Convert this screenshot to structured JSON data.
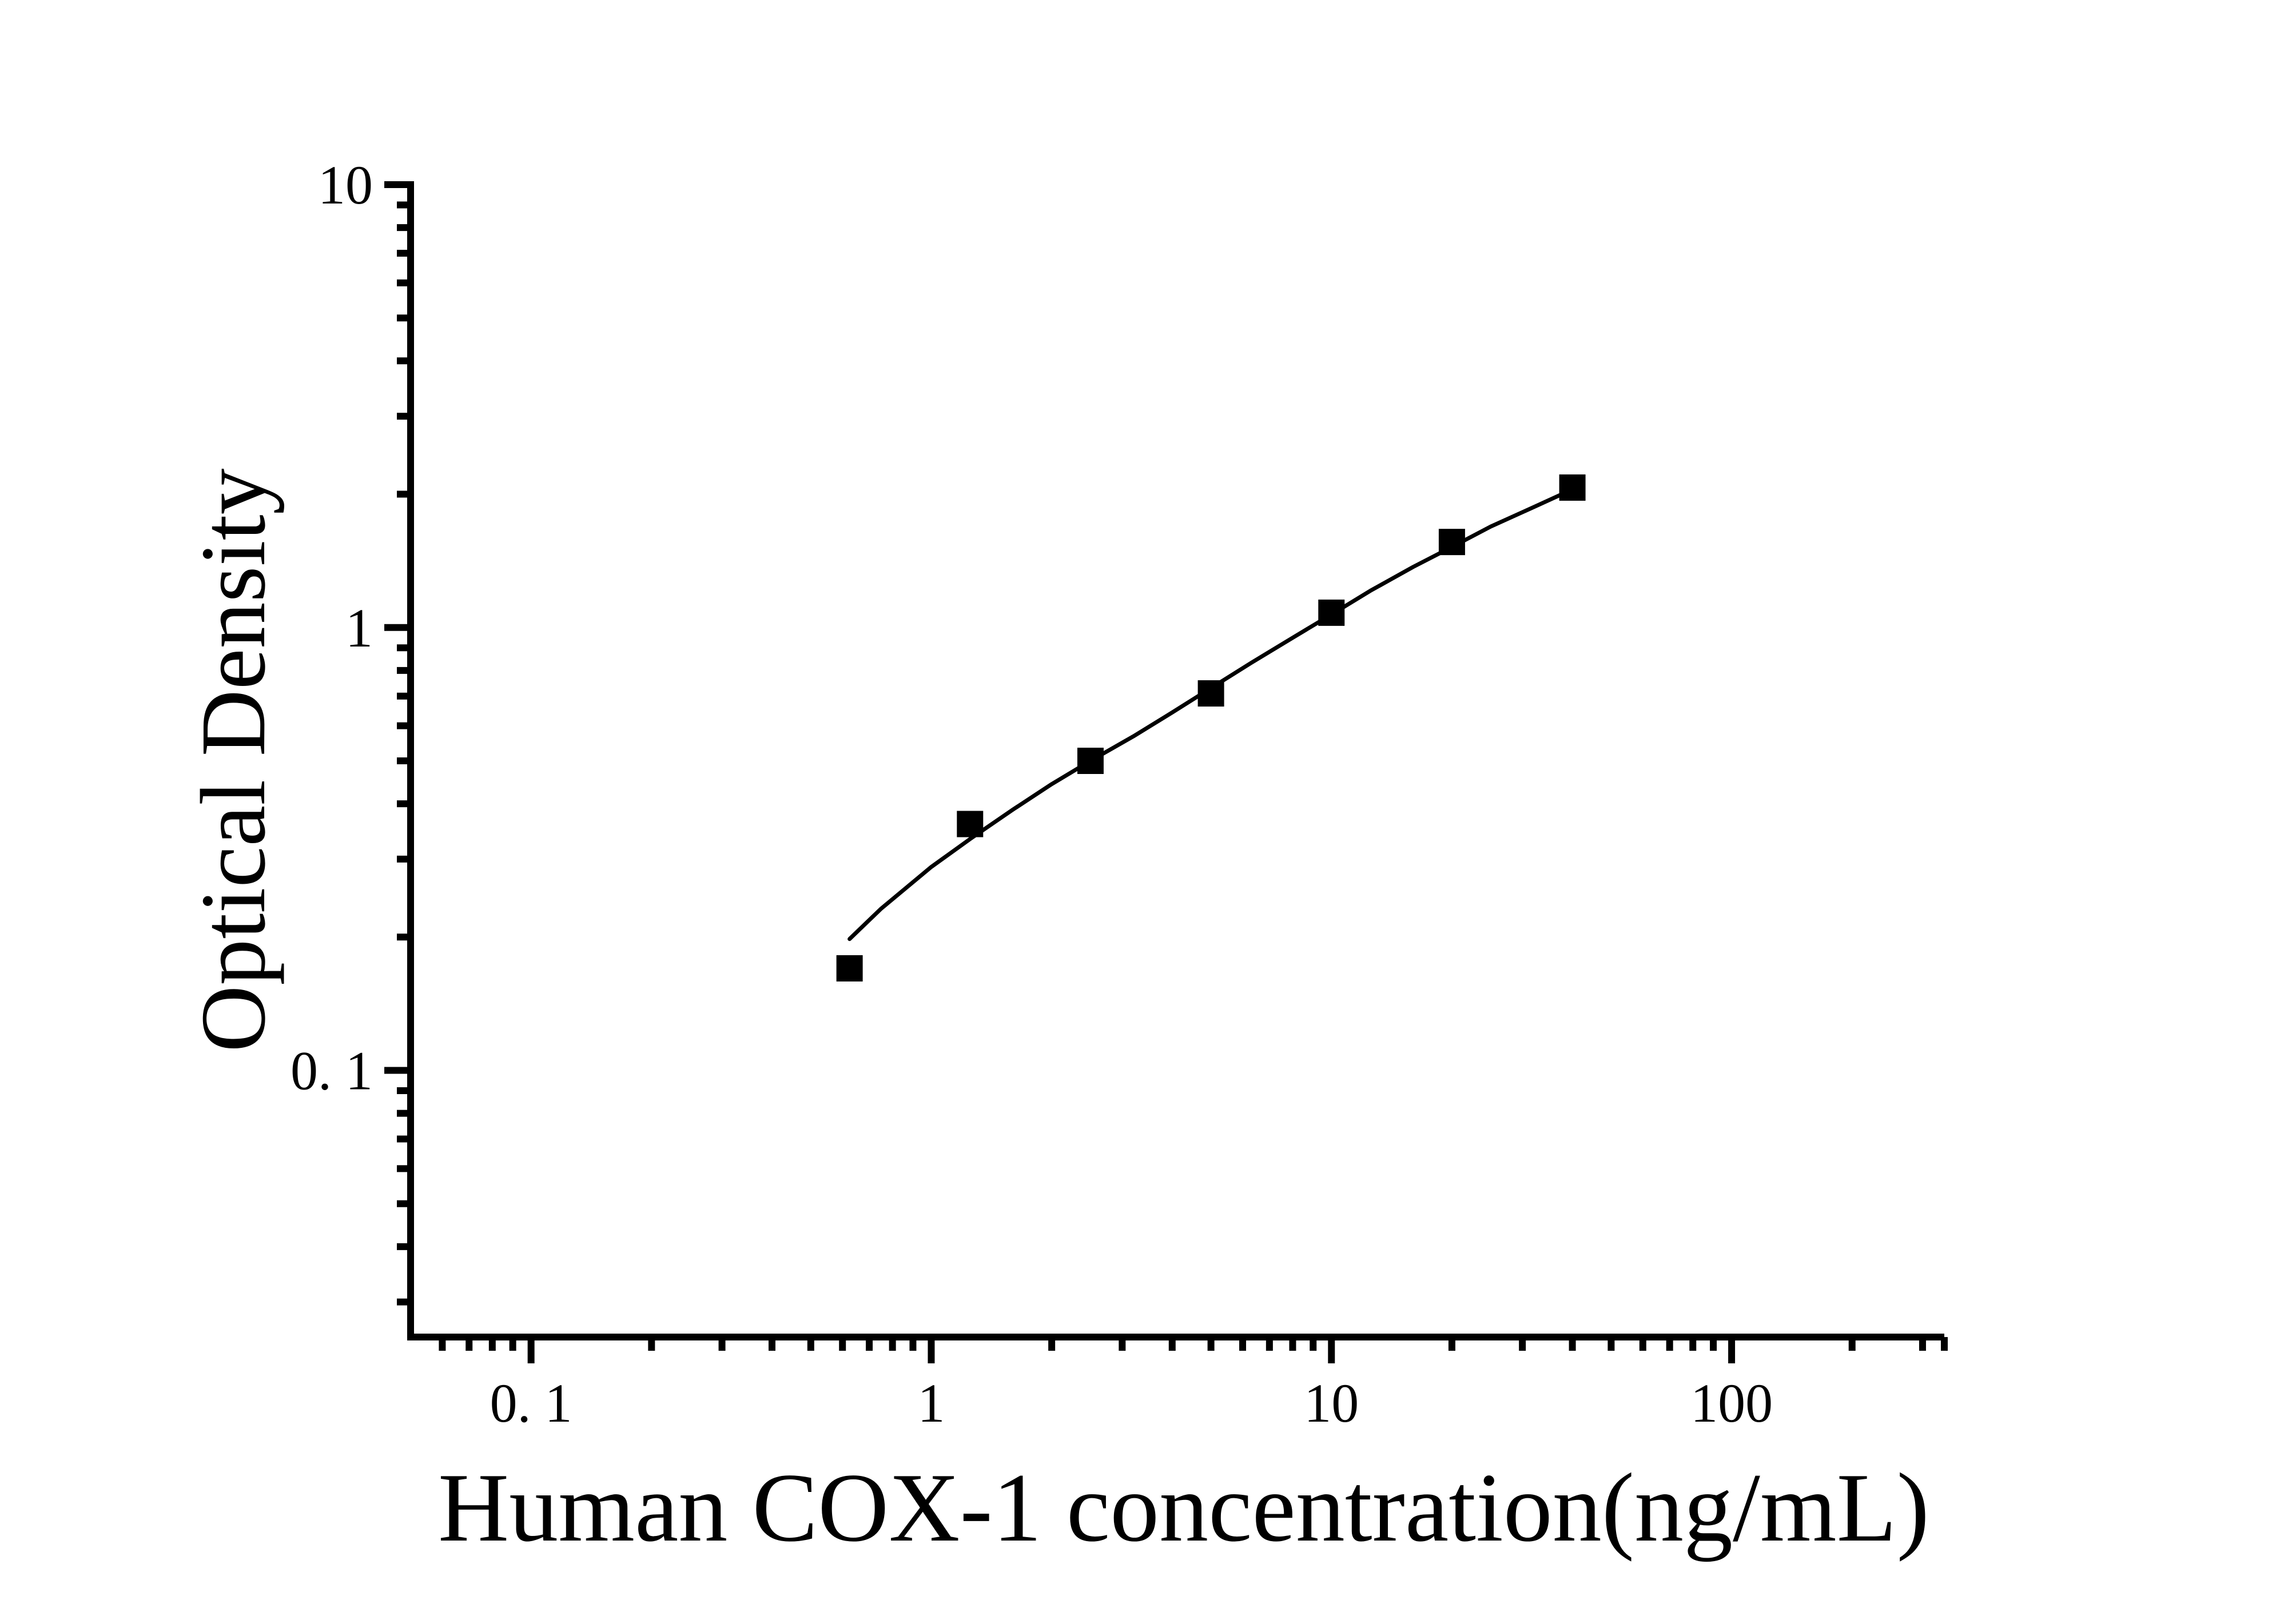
{
  "figure": {
    "background": "#ffffff",
    "ink": "#000000"
  },
  "chart_data": {
    "type": "scatter",
    "title": "",
    "xlabel": "Human COX-1 concentration(ng/mL)",
    "ylabel": "Optical Density",
    "x_scale": "log",
    "y_scale": "log",
    "xlim": [
      0.05,
      340
    ],
    "ylim": [
      0.025,
      10
    ],
    "grid": false,
    "legend": "none",
    "x_major_ticks": [
      {
        "value": 0.1,
        "label": "0. 1"
      },
      {
        "value": 1,
        "label": "1"
      },
      {
        "value": 10,
        "label": "10"
      },
      {
        "value": 100,
        "label": "100"
      }
    ],
    "y_major_ticks": [
      {
        "value": 10,
        "label": "10"
      },
      {
        "value": 1,
        "label": "1"
      },
      {
        "value": 0.1,
        "label": "0. 1"
      }
    ],
    "series": [
      {
        "name": "standard-points",
        "kind": "scatter",
        "marker": "filled-square",
        "x": [
          0.625,
          1.25,
          2.5,
          5,
          10,
          20,
          40
        ],
        "y": [
          0.17,
          0.36,
          0.5,
          0.71,
          1.08,
          1.56,
          2.07
        ]
      },
      {
        "name": "fitted-curve",
        "kind": "line",
        "x": [
          0.625,
          0.75,
          1.0,
          1.25,
          1.6,
          2.0,
          2.5,
          3.2,
          4.0,
          5.0,
          6.3,
          8.0,
          10,
          12.5,
          16,
          20,
          25,
          32,
          40
        ],
        "y": [
          0.198,
          0.232,
          0.288,
          0.333,
          0.388,
          0.443,
          0.5,
          0.568,
          0.643,
          0.73,
          0.832,
          0.948,
          1.07,
          1.21,
          1.37,
          1.52,
          1.69,
          1.87,
          2.05
        ]
      }
    ]
  }
}
